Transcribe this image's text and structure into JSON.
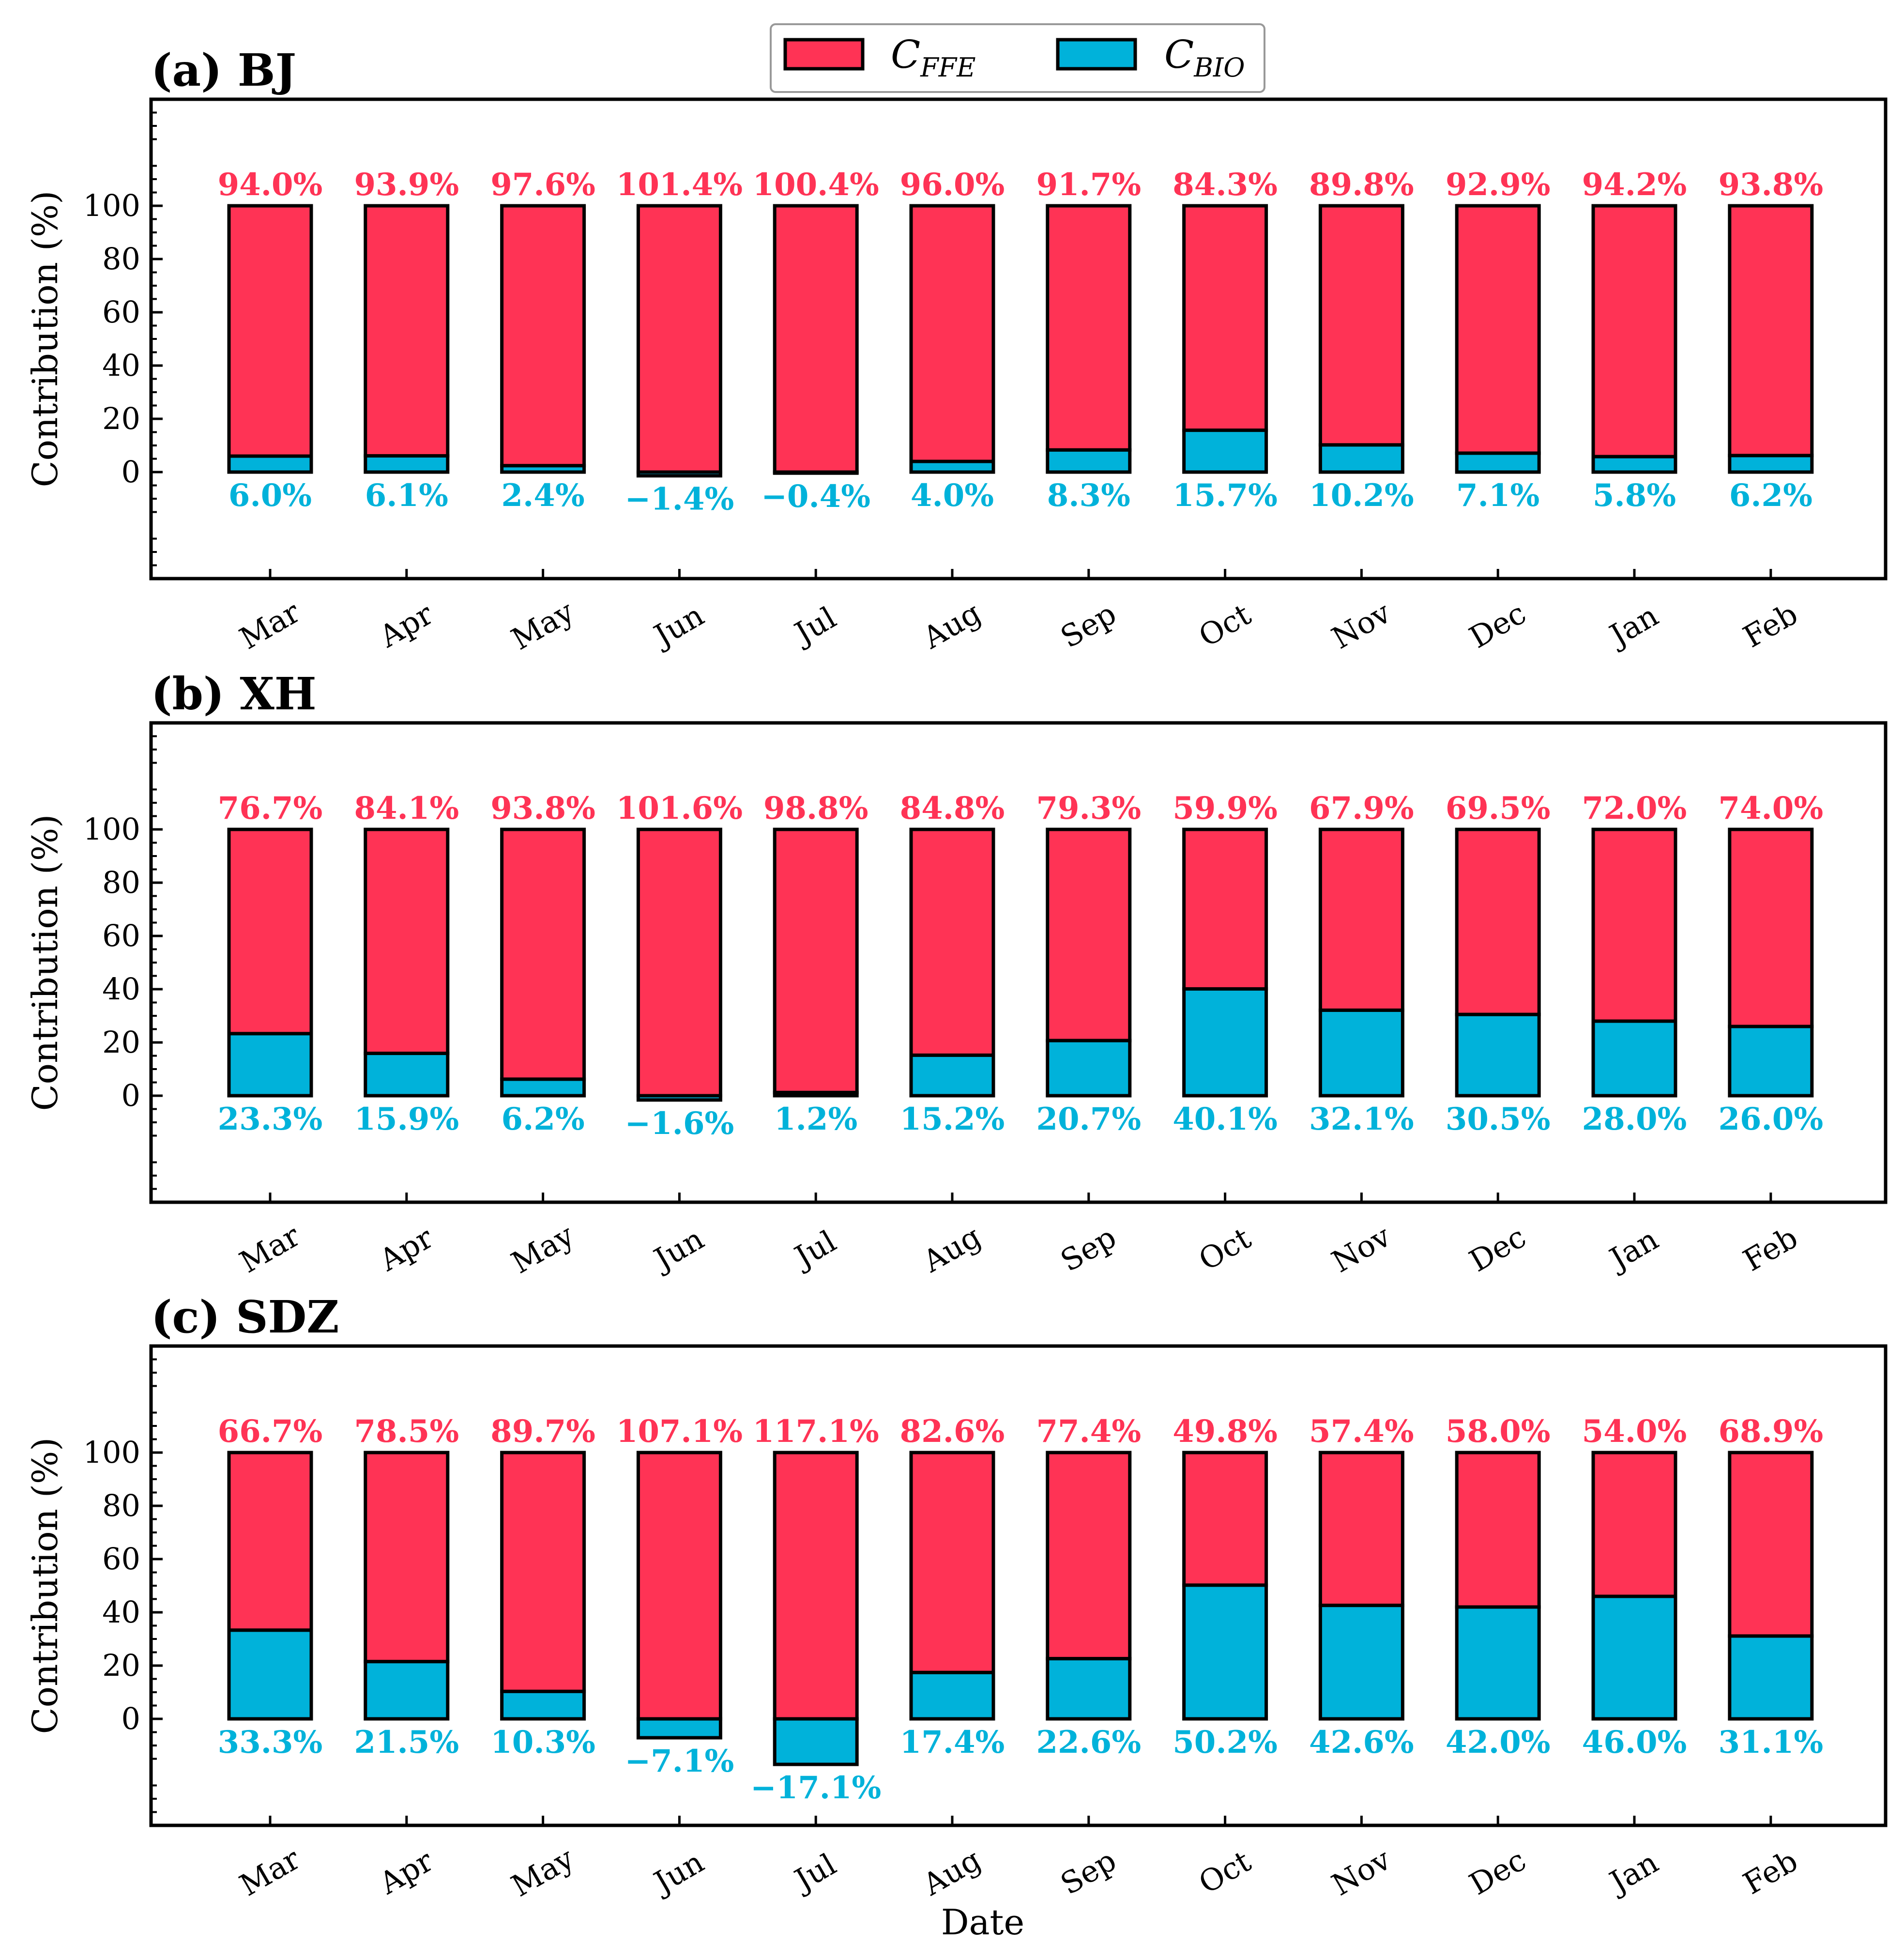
{
  "colors": {
    "ffe": "#FF3355",
    "bio": "#00B2DA",
    "edge": "#000000"
  },
  "legend": {
    "ffe": {
      "main": "C",
      "sub": "FFE"
    },
    "bio": {
      "main": "C",
      "sub": "BIO"
    }
  },
  "chart_data": {
    "type": "bar",
    "stacked": true,
    "xlabel": "Date",
    "ylabel": "Contribution (%)",
    "ylim": [
      -40,
      140
    ],
    "yticks": [
      0,
      20,
      40,
      60,
      80,
      100
    ],
    "categories": [
      "Mar",
      "Apr",
      "May",
      "Jun",
      "Jul",
      "Aug",
      "Sep",
      "Oct",
      "Nov",
      "Dec",
      "Jan",
      "Feb"
    ],
    "panels": [
      {
        "title": "(a) BJ",
        "series": [
          {
            "name": "C_FFE",
            "values": [
              94.0,
              93.9,
              97.6,
              101.4,
              100.4,
              96.0,
              91.7,
              84.3,
              89.8,
              92.9,
              94.2,
              93.8
            ],
            "labels": [
              "94.0%",
              "93.9%",
              "97.6%",
              "101.4%",
              "100.4%",
              "96.0%",
              "91.7%",
              "84.3%",
              "89.8%",
              "92.9%",
              "94.2%",
              "93.8%"
            ]
          },
          {
            "name": "C_BIO",
            "values": [
              6.0,
              6.1,
              2.4,
              -1.4,
              -0.4,
              4.0,
              8.3,
              15.7,
              10.2,
              7.1,
              5.8,
              6.2
            ],
            "labels": [
              "6.0%",
              "6.1%",
              "2.4%",
              "−1.4%",
              "−0.4%",
              "4.0%",
              "8.3%",
              "15.7%",
              "10.2%",
              "7.1%",
              "5.8%",
              "6.2%"
            ]
          }
        ]
      },
      {
        "title": "(b) XH",
        "series": [
          {
            "name": "C_FFE",
            "values": [
              76.7,
              84.1,
              93.8,
              101.6,
              98.8,
              84.8,
              79.3,
              59.9,
              67.9,
              69.5,
              72.0,
              74.0
            ],
            "labels": [
              "76.7%",
              "84.1%",
              "93.8%",
              "101.6%",
              "98.8%",
              "84.8%",
              "79.3%",
              "59.9%",
              "67.9%",
              "69.5%",
              "72.0%",
              "74.0%"
            ]
          },
          {
            "name": "C_BIO",
            "values": [
              23.3,
              15.9,
              6.2,
              -1.6,
              1.2,
              15.2,
              20.7,
              40.1,
              32.1,
              30.5,
              28.0,
              26.0
            ],
            "labels": [
              "23.3%",
              "15.9%",
              "6.2%",
              "−1.6%",
              "1.2%",
              "15.2%",
              "20.7%",
              "40.1%",
              "32.1%",
              "30.5%",
              "28.0%",
              "26.0%"
            ]
          }
        ]
      },
      {
        "title": "(c) SDZ",
        "series": [
          {
            "name": "C_FFE",
            "values": [
              66.7,
              78.5,
              89.7,
              107.1,
              117.1,
              82.6,
              77.4,
              49.8,
              57.4,
              58.0,
              54.0,
              68.9
            ],
            "labels": [
              "66.7%",
              "78.5%",
              "89.7%",
              "107.1%",
              "117.1%",
              "82.6%",
              "77.4%",
              "49.8%",
              "57.4%",
              "58.0%",
              "54.0%",
              "68.9%"
            ]
          },
          {
            "name": "C_BIO",
            "values": [
              33.3,
              21.5,
              10.3,
              -7.1,
              -17.1,
              17.4,
              22.6,
              50.2,
              42.6,
              42.0,
              46.0,
              31.1
            ],
            "labels": [
              "33.3%",
              "21.5%",
              "10.3%",
              "−7.1%",
              "−17.1%",
              "17.4%",
              "22.6%",
              "50.2%",
              "42.6%",
              "42.0%",
              "46.0%",
              "31.1%"
            ]
          }
        ]
      }
    ]
  }
}
